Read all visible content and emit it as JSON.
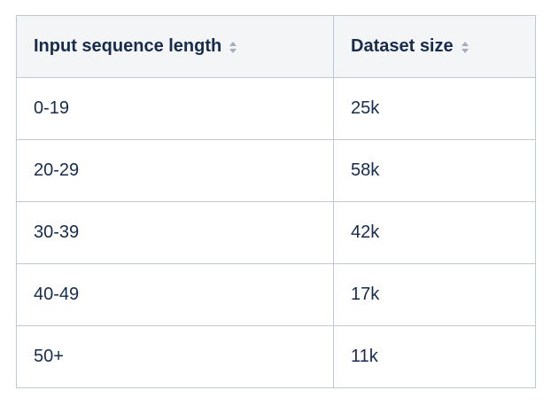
{
  "theme": {
    "header_background": "#f4f5f7",
    "text_color": "#172b4d",
    "border_color": "#c1c7d0",
    "sort_icon_color": "#a5adba"
  },
  "table": {
    "columns": [
      {
        "label": "Input sequence length",
        "icon": "sort-arrows-icon"
      },
      {
        "label": "Dataset size",
        "icon": "sort-arrows-icon"
      }
    ],
    "rows": [
      {
        "cells": [
          "0-19",
          "25k"
        ]
      },
      {
        "cells": [
          "20-29",
          "58k"
        ]
      },
      {
        "cells": [
          "30-39",
          "42k"
        ]
      },
      {
        "cells": [
          "40-49",
          "17k"
        ]
      },
      {
        "cells": [
          "50+",
          "11k"
        ]
      }
    ]
  },
  "chart_data": {
    "type": "table",
    "columns": [
      "Input sequence length",
      "Dataset size"
    ],
    "rows": [
      [
        "0-19",
        "25k"
      ],
      [
        "20-29",
        "58k"
      ],
      [
        "30-39",
        "42k"
      ],
      [
        "40-49",
        "17k"
      ],
      [
        "50+",
        "11k"
      ]
    ]
  }
}
